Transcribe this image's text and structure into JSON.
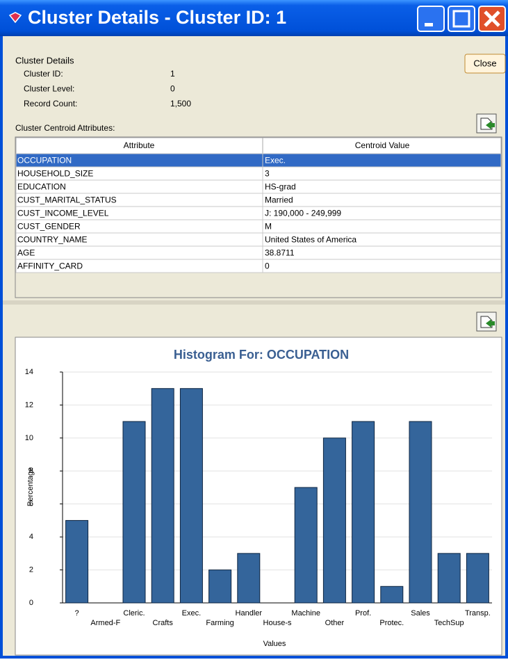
{
  "window": {
    "title": "Cluster Details - Cluster ID: 1",
    "close_button": "Close"
  },
  "details": {
    "heading": "Cluster Details",
    "fields": [
      [
        "Cluster ID:",
        "1"
      ],
      [
        "Cluster Level:",
        "0"
      ],
      [
        "Record Count:",
        "1,500"
      ]
    ]
  },
  "table": {
    "caption": "Cluster Centroid Attributes:",
    "header": [
      "Attribute",
      "Centroid Value"
    ],
    "selected_row": 0,
    "rows": [
      [
        "OCCUPATION",
        "Exec."
      ],
      [
        "HOUSEHOLD_SIZE",
        "3"
      ],
      [
        "EDUCATION",
        "HS-grad"
      ],
      [
        "CUST_MARITAL_STATUS",
        "Married"
      ],
      [
        "CUST_INCOME_LEVEL",
        "J: 190,000 - 249,999"
      ],
      [
        "CUST_GENDER",
        "M"
      ],
      [
        "COUNTRY_NAME",
        "United States of America"
      ],
      [
        "AGE",
        "38.8711"
      ],
      [
        "AFFINITY_CARD",
        "0"
      ]
    ]
  },
  "chart_data": {
    "type": "bar",
    "title": "Histogram For: OCCUPATION",
    "x_label": "Values",
    "y_label": "Percentage",
    "categories": [
      "?",
      "Armed-F",
      "Cleric.",
      "Crafts",
      "Exec.",
      "Farming",
      "Handler",
      "House-s",
      "Machine",
      "Other",
      "Prof.",
      "Protec.",
      "Sales",
      "TechSup",
      "Transp."
    ],
    "values": [
      5,
      0,
      11,
      13,
      13,
      2,
      3,
      0,
      7,
      10,
      11,
      1,
      11,
      3,
      3
    ],
    "color": "#34659b",
    "ylim": [
      0,
      14
    ],
    "yticks": [
      0,
      2,
      4,
      6,
      8,
      10,
      12,
      14
    ],
    "grid": true
  }
}
